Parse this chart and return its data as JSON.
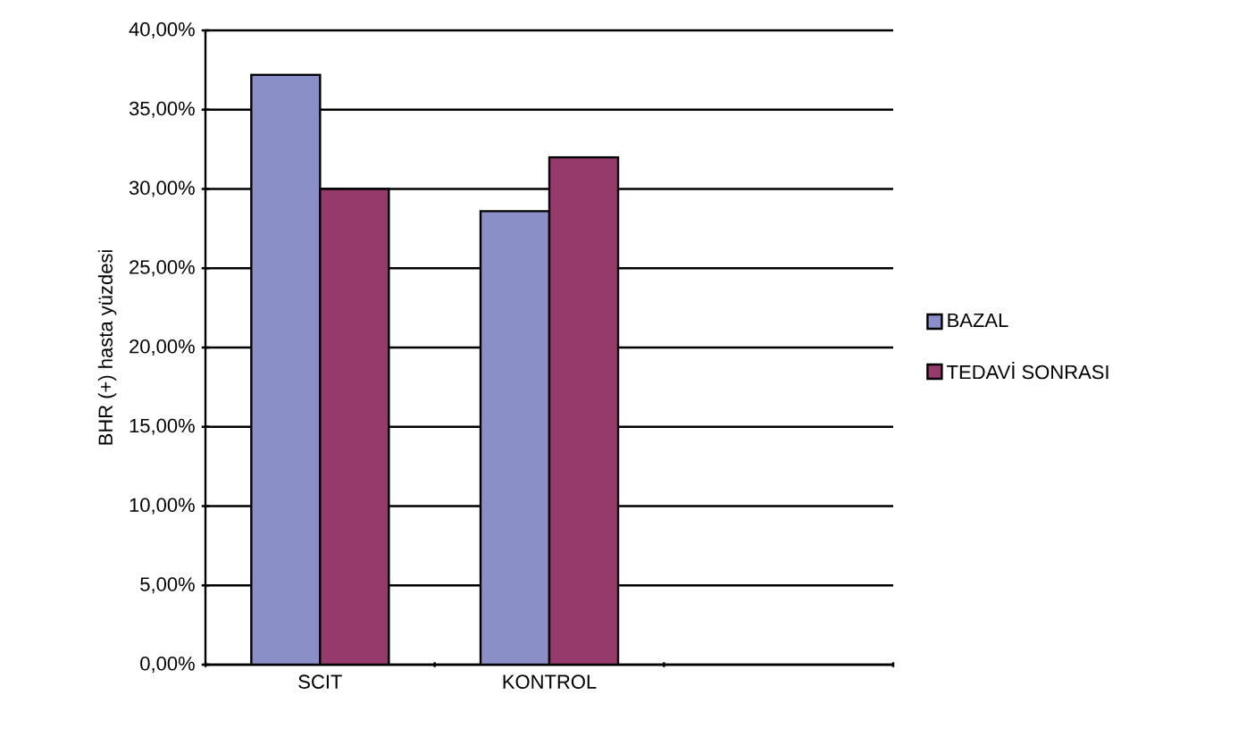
{
  "chart_data": {
    "type": "bar",
    "ylabel": "BHR (+) hasta yüzdesi",
    "categories": [
      "SCIT",
      "KONTROL",
      null
    ],
    "series": [
      {
        "name": "BAZAL",
        "color": "#8a8fc8",
        "values": [
          37.2,
          28.6,
          null
        ]
      },
      {
        "name": "TEDAVİ SONRASI",
        "color": "#953a6a",
        "values": [
          30.0,
          32.0,
          null
        ]
      }
    ],
    "ylim": [
      0,
      40
    ],
    "yticks": [
      {
        "value": 0,
        "label": "0,00%"
      },
      {
        "value": 5,
        "label": "5,00%"
      },
      {
        "value": 10,
        "label": "10,00%"
      },
      {
        "value": 15,
        "label": "15,00%"
      },
      {
        "value": 20,
        "label": "20,00%"
      },
      {
        "value": 25,
        "label": "25,00%"
      },
      {
        "value": 30,
        "label": "30,00%"
      },
      {
        "value": 35,
        "label": "35,00%"
      },
      {
        "value": 40,
        "label": "40,00%"
      }
    ],
    "grid": "y",
    "legend": "right"
  }
}
